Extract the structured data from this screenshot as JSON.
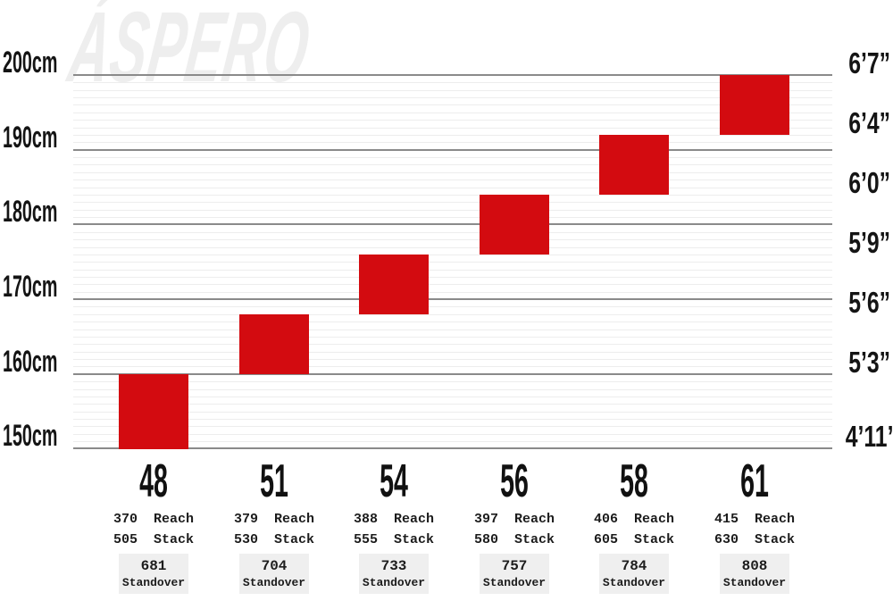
{
  "chart_data": {
    "type": "bar",
    "subtype": "floating-range-columns",
    "watermark": "ÁSPERO",
    "ylim_cm": [
      150,
      200
    ],
    "minor_grid_step_cm": 1,
    "grid": "on",
    "left_axis": {
      "unit": "cm",
      "ticks": [
        {
          "label": "200cm",
          "cm": 200
        },
        {
          "label": "190cm",
          "cm": 190
        },
        {
          "label": "180cm",
          "cm": 180
        },
        {
          "label": "170cm",
          "cm": 170
        },
        {
          "label": "160cm",
          "cm": 160
        },
        {
          "label": "150cm",
          "cm": 150
        }
      ]
    },
    "right_axis": {
      "unit": "ft-in",
      "ticks": [
        {
          "label": "6’7”",
          "cm": 200
        },
        {
          "label": "6’4”",
          "cm": 192
        },
        {
          "label": "6’0”",
          "cm": 184
        },
        {
          "label": "5’9”",
          "cm": 176
        },
        {
          "label": "5’6”",
          "cm": 168
        },
        {
          "label": "5’3”",
          "cm": 160
        },
        {
          "label": "4’11”",
          "cm": 150
        }
      ]
    },
    "words": {
      "reach": "Reach",
      "stack": "Stack",
      "standover": "Standover"
    },
    "sizes": [
      {
        "label": "48",
        "height_min_cm": 150,
        "height_max_cm": 160,
        "reach": 370,
        "stack": 505,
        "standover": 681
      },
      {
        "label": "51",
        "height_min_cm": 160,
        "height_max_cm": 168,
        "reach": 379,
        "stack": 530,
        "standover": 704
      },
      {
        "label": "54",
        "height_min_cm": 168,
        "height_max_cm": 176,
        "reach": 388,
        "stack": 555,
        "standover": 733
      },
      {
        "label": "56",
        "height_min_cm": 176,
        "height_max_cm": 184,
        "reach": 397,
        "stack": 580,
        "standover": 757
      },
      {
        "label": "58",
        "height_min_cm": 184,
        "height_max_cm": 192,
        "reach": 406,
        "stack": 605,
        "standover": 784
      },
      {
        "label": "61",
        "height_min_cm": 192,
        "height_max_cm": 200,
        "reach": 415,
        "stack": 630,
        "standover": 808
      }
    ],
    "colors": {
      "bar": "#d30b10",
      "major_grid": "#8a8a8a",
      "minor_grid": "#ededed",
      "standover_bg": "#efefef",
      "text": "#141414",
      "watermark": "#eeeeee"
    }
  }
}
